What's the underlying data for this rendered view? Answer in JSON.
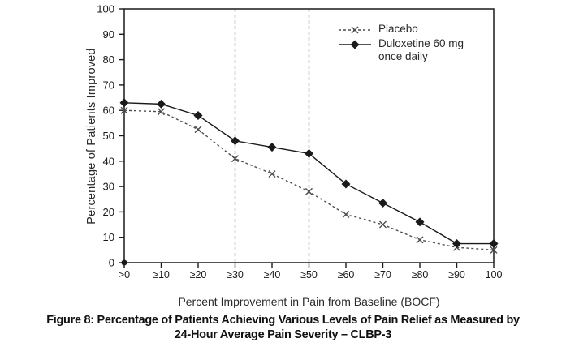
{
  "figure": {
    "caption_line1": "Figure 8: Percentage of Patients Achieving Various Levels of Pain Relief as Measured by",
    "caption_line2": "24-Hour Average Pain Severity – CLBP-3"
  },
  "legend": {
    "placebo_label": "Placebo",
    "duloxetine_label_line1": "Duloxetine 60 mg",
    "duloxetine_label_line2": "once daily"
  },
  "colors": {
    "axis": "#1a1a1a",
    "placebo_series": "#4d4d4d",
    "duloxetine_series": "#1a1a1a",
    "background": "#ffffff"
  },
  "chart_data": {
    "type": "line",
    "title": "",
    "xlabel": "Percent Improvement in Pain from Baseline (BOCF)",
    "ylabel": "Percentage of Patients Improved",
    "categories": [
      ">0",
      "≥10",
      "≥20",
      "≥30",
      "≥40",
      "≥50",
      "≥60",
      "≥70",
      "≥80",
      "≥90",
      "100"
    ],
    "series": [
      {
        "name": "Placebo",
        "values": [
          60,
          59.5,
          52.5,
          41,
          35,
          28,
          19,
          15,
          9,
          6,
          5
        ],
        "marker": "x",
        "line": "dashed",
        "color": "#4d4d4d"
      },
      {
        "name": "Duloxetine 60 mg once daily",
        "values": [
          63,
          62.5,
          58,
          48,
          45.5,
          43,
          31,
          23.5,
          16,
          7.5,
          7.5
        ],
        "marker": "diamond",
        "line": "solid",
        "color": "#1a1a1a"
      }
    ],
    "ylim": [
      0,
      100
    ],
    "y_ticks": [
      0,
      10,
      20,
      30,
      40,
      50,
      60,
      70,
      80,
      90,
      100
    ],
    "reference_lines_at_categories": [
      "≥30",
      "≥50"
    ],
    "origin_dot": true,
    "grid": false,
    "legend_position": "top-right-inside"
  }
}
